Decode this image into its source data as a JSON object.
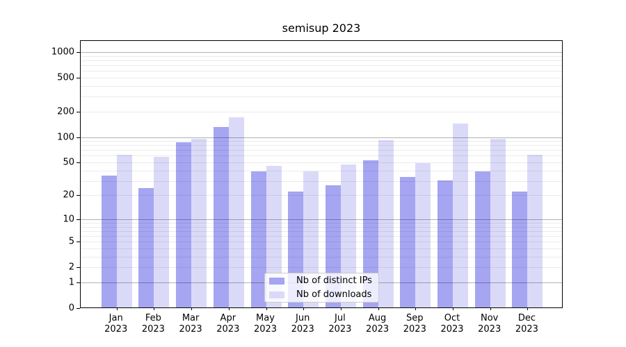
{
  "title": "semisup 2023",
  "legend": {
    "items": [
      {
        "label": "Nb of distinct IPs",
        "color": "#a5a5f2"
      },
      {
        "label": "Nb of downloads",
        "color": "#dadaf8"
      }
    ]
  },
  "chart_data": {
    "type": "bar",
    "title": "semisup 2023",
    "categories": [
      "Jan 2023",
      "Feb 2023",
      "Mar 2023",
      "Apr 2023",
      "May 2023",
      "Jun 2023",
      "Jul 2023",
      "Aug 2023",
      "Sep 2023",
      "Oct 2023",
      "Nov 2023",
      "Dec 2023"
    ],
    "series": [
      {
        "name": "Nb of distinct IPs",
        "color": "#a5a5f2",
        "values": [
          34,
          24,
          85,
          128,
          38,
          22,
          26,
          52,
          33,
          30,
          38,
          22
        ]
      },
      {
        "name": "Nb of downloads",
        "color": "#dadaf8",
        "values": [
          61,
          57,
          94,
          167,
          45,
          38,
          46,
          91,
          48,
          141,
          94,
          61
        ]
      }
    ],
    "xlabel": "",
    "ylabel": "",
    "yscale": "log10(1+y)",
    "ylim": [
      0,
      1360
    ],
    "yticks": [
      1000,
      500,
      200,
      100,
      50,
      20,
      10,
      5,
      2,
      1,
      0
    ],
    "major_grid_values": [
      1,
      10,
      100,
      1000
    ],
    "grid": true,
    "legend_position": "lower center",
    "colors": {
      "major_gridline": "rgba(0,0,0,0.30)",
      "minor_gridline": "rgba(0,0,0,0.08)",
      "axis": "#000000",
      "background": "#ffffff"
    }
  }
}
